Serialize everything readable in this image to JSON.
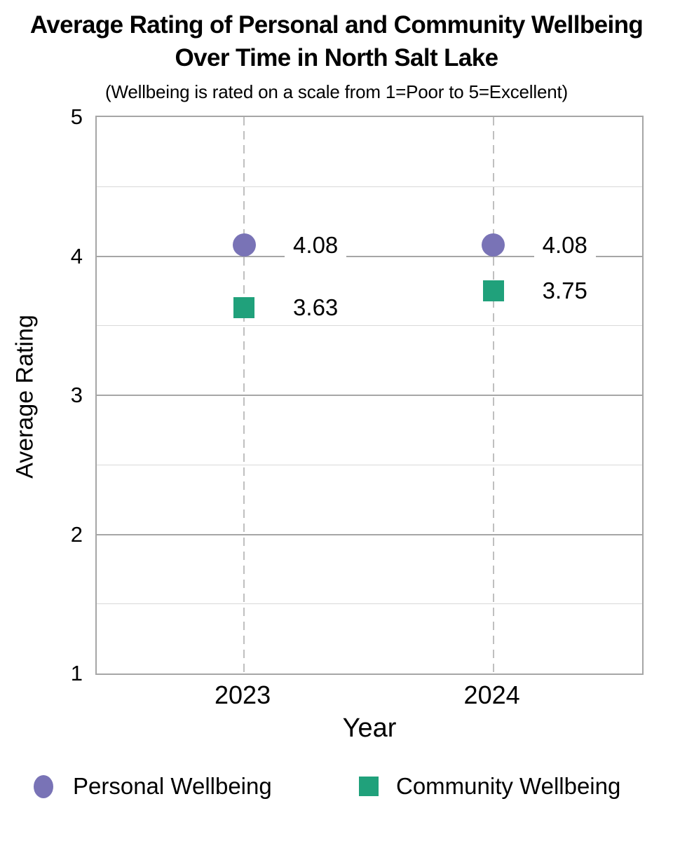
{
  "title": {
    "line1": "Average Rating of Personal and Community Wellbeing",
    "line2": "Over Time in North Salt Lake"
  },
  "subtitle": "(Wellbeing is rated on a scale from 1=Poor to 5=Excellent)",
  "chart_data": {
    "type": "scatter",
    "title": "Average Rating of Personal and Community Wellbeing Over Time in North Salt Lake",
    "subtitle": "(Wellbeing is rated on a scale from 1=Poor to 5=Excellent)",
    "categories": [
      "2023",
      "2024"
    ],
    "series": [
      {
        "name": "Personal Wellbeing",
        "marker": "circle",
        "color": "#7973B6",
        "values": [
          4.08,
          4.08
        ],
        "data_labels": [
          "4.08",
          "4.08"
        ]
      },
      {
        "name": "Community Wellbeing",
        "marker": "square",
        "color": "#20A17B",
        "values": [
          3.63,
          3.75
        ],
        "data_labels": [
          "3.63",
          "3.75"
        ]
      }
    ],
    "xlabel": "Year",
    "ylabel": "Average Rating",
    "ylim": [
      1,
      5
    ],
    "yticks": [
      "1",
      "2",
      "3",
      "4",
      "5"
    ],
    "y_major_interval": 1,
    "y_minor_interval": 0.5,
    "grid": {
      "major_color": "#A6A6A6",
      "minor_color": "#D9D9D9",
      "border_color": "#A6A6A6",
      "category_line_color": "#BFBFBF",
      "category_line_style": "dashed"
    },
    "legend_position": "bottom",
    "text_color": "#000000",
    "background_color": "#FFFFFF"
  }
}
